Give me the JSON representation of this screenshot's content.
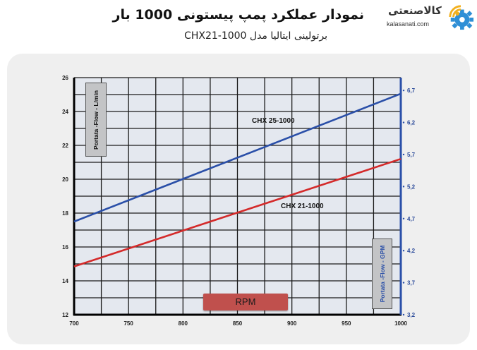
{
  "header": {
    "title": "نمودار عملکرد پمپ پیستونی 1000 بار",
    "subtitle": "برتولینی ایتالیا مدل CHX21-1000"
  },
  "logo": {
    "name_fa": "کالاصنعتی",
    "domain": "kalasanati.com",
    "icon": "gear-wifi-icon",
    "colors": {
      "gear": "#2f8fd6",
      "signal": "#f2b01e"
    }
  },
  "chart_data": {
    "type": "line",
    "title": "",
    "xlabel": "RPM",
    "ylabel": "Portata -Flow - L/min",
    "y2label": "Portata -Flow - GPM",
    "xlim": [
      700,
      1000
    ],
    "ylim": [
      12,
      26
    ],
    "y2lim": [
      3.2,
      6.9
    ],
    "grid": true,
    "x_ticks": [
      "700",
      "750",
      "800",
      "850",
      "900",
      "950",
      "1000"
    ],
    "y_ticks": [
      "12",
      "14",
      "16",
      "18",
      "20",
      "22",
      "24",
      "26"
    ],
    "y2_ticks": [
      "3,2",
      "3,7",
      "4,2",
      "4,7",
      "5,2",
      "5,7",
      "6,2",
      "6,7"
    ],
    "series": [
      {
        "name": "CHX 25-1000",
        "color": "#2a4fa8",
        "x": [
          700,
          1000
        ],
        "values": [
          17.5,
          25.05
        ]
      },
      {
        "name": "CHX 21-1000",
        "color": "#d42a2a",
        "x": [
          700,
          1000
        ],
        "values": [
          14.85,
          21.2
        ]
      }
    ],
    "colors": {
      "plot_bg": "#e4e8ef",
      "grid": "#1a1a1a",
      "right_axis": "#2a4fa8"
    }
  }
}
